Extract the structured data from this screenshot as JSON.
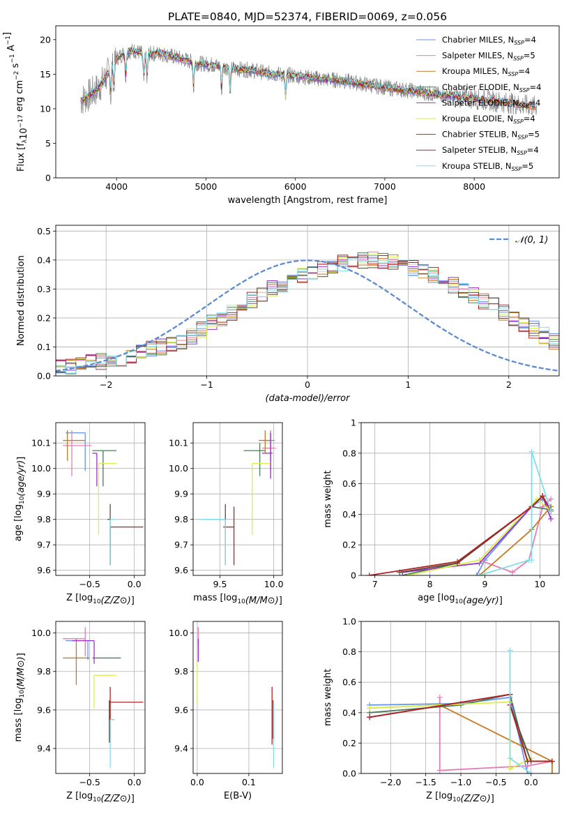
{
  "title": "PLATE=0840, MJD=52374, FIBERID=0069, z=0.056",
  "colors": {
    "Chabrier MILES": "#6495ed",
    "Salpeter MILES": "#e67ab4",
    "Kroupa MILES": "#c47a1d",
    "Chabrier ELODIE": "#4a7c59",
    "Salpeter ELODIE": "#9932cc",
    "Kroupa ELODIE": "#d9ef4a",
    "Chabrier STELIB": "#5a4a3a",
    "Salpeter STELIB": "#b22222",
    "Kroupa STELIB": "#80deea",
    "data": "#808080",
    "grid": "#b0b0b0",
    "normal_curve": "#5b8ad6"
  },
  "chart_data": [
    {
      "id": "spectrum",
      "type": "line",
      "xlabel": "wavelength [Angstrom, rest frame]",
      "ylabel": "Flux [f_λ10^-17 erg cm^-2 s^-1 A^-1]",
      "xlim": [
        3320,
        8950
      ],
      "ylim": [
        0,
        22
      ],
      "xticks": [
        4000,
        5000,
        6000,
        7000,
        8000
      ],
      "yticks": [
        0,
        5,
        10,
        15,
        20
      ],
      "grid": false,
      "legend_position": "upper right",
      "continuum": {
        "x": [
          3600,
          3700,
          3800,
          3900,
          4000,
          4100,
          4200,
          4300,
          4500,
          4700,
          4900,
          5100,
          5300,
          5500,
          5700,
          5900,
          6100,
          6300,
          6500,
          6700,
          6900,
          7100,
          7300,
          7500,
          7700,
          7900,
          8100,
          8300,
          8500,
          8700
        ],
        "y": [
          11.2,
          12.0,
          13.0,
          15.0,
          17.3,
          18.2,
          18.4,
          17.9,
          18.0,
          17.3,
          16.6,
          16.3,
          15.8,
          15.6,
          15.1,
          14.9,
          14.6,
          14.3,
          14.1,
          13.7,
          13.3,
          12.9,
          12.6,
          12.2,
          11.9,
          11.6,
          11.3,
          11.0,
          10.6,
          10.3
        ]
      },
      "absorption_lines_x": [
        3934,
        3969,
        4102,
        4304,
        4340,
        4861,
        5175,
        5270,
        5890
      ],
      "series": [
        {
          "name": "Chabrier MILES, N_SSP=4",
          "model": "Chabrier MILES"
        },
        {
          "name": "Salpeter MILES, N_SSP=5",
          "model": "Salpeter MILES"
        },
        {
          "name": "Kroupa MILES, N_SSP=4",
          "model": "Kroupa MILES"
        },
        {
          "name": "Chabrier ELODIE, N_SSP=4",
          "model": "Chabrier ELODIE"
        },
        {
          "name": "Salpeter ELODIE, N_SSP=4",
          "model": "Salpeter ELODIE"
        },
        {
          "name": "Kroupa ELODIE, N_SSP=4",
          "model": "Kroupa ELODIE"
        },
        {
          "name": "Chabrier STELIB, N_SSP=5",
          "model": "Chabrier STELIB"
        },
        {
          "name": "Salpeter STELIB, N_SSP=4",
          "model": "Salpeter STELIB"
        },
        {
          "name": "Kroupa STELIB, N_SSP=5",
          "model": "Kroupa STELIB"
        }
      ]
    },
    {
      "id": "residuals",
      "type": "histogram",
      "xlabel": "(data-model)/error",
      "ylabel": "Normed distribution",
      "xlim": [
        -2.5,
        2.5
      ],
      "ylim": [
        0,
        0.52
      ],
      "xticks": [
        -2,
        -1,
        0,
        1,
        2
      ],
      "yticks": [
        0.0,
        0.1,
        0.2,
        0.3,
        0.4,
        0.5
      ],
      "grid": true,
      "legend": "𝒩(0, 1)",
      "legend_position": "upper right",
      "bin_width": 0.1,
      "bins_from": -2.5,
      "base_values": [
        0.03,
        0.03,
        0.04,
        0.05,
        0.05,
        0.06,
        0.06,
        0.07,
        0.08,
        0.09,
        0.1,
        0.11,
        0.12,
        0.14,
        0.16,
        0.18,
        0.2,
        0.22,
        0.24,
        0.26,
        0.28,
        0.3,
        0.31,
        0.33,
        0.35,
        0.36,
        0.37,
        0.38,
        0.39,
        0.4,
        0.4,
        0.4,
        0.4,
        0.39,
        0.38,
        0.37,
        0.36,
        0.35,
        0.33,
        0.31,
        0.3,
        0.28,
        0.26,
        0.24,
        0.22,
        0.2,
        0.18,
        0.16,
        0.14,
        0.12,
        0.11,
        0.1,
        0.09,
        0.08,
        0.07,
        0.06,
        0.06,
        0.05,
        0.05,
        0.04,
        0.03,
        0.03
      ]
    },
    {
      "id": "age-vs-Z",
      "type": "errorbar",
      "xlabel": "Z [log10(Z/Z⊙)]",
      "ylabel": "age [log10(age/yr)]",
      "xlim": [
        -0.88,
        0.12
      ],
      "ylim": [
        9.58,
        10.18
      ],
      "xticks": [
        -0.5,
        0.0
      ],
      "yticks": [
        9.6,
        9.7,
        9.8,
        9.9,
        10.0,
        10.1
      ],
      "grid": true,
      "points": [
        {
          "model": "Chabrier MILES",
          "x": -0.55,
          "xerr": [
            0.22,
            0.0
          ],
          "y": 10.14,
          "yerr": [
            0.15,
            0.0
          ]
        },
        {
          "model": "Salpeter MILES",
          "x": -0.7,
          "xerr": [
            0.1,
            0.22
          ],
          "y": 10.09,
          "yerr": [
            0.12,
            0.06
          ]
        },
        {
          "model": "Kroupa MILES",
          "x": -0.75,
          "xerr": [
            0.05,
            0.2
          ],
          "y": 10.11,
          "yerr": [
            0.08,
            0.04
          ]
        },
        {
          "model": "Chabrier ELODIE",
          "x": -0.35,
          "xerr": [
            0.12,
            0.15
          ],
          "y": 10.07,
          "yerr": [
            0.14,
            0.0
          ]
        },
        {
          "model": "Salpeter ELODIE",
          "x": -0.42,
          "xerr": [
            0.05,
            0.0
          ],
          "y": 10.06,
          "yerr": [
            0.13,
            0.0
          ]
        },
        {
          "model": "Kroupa ELODIE",
          "x": -0.4,
          "xerr": [
            0.0,
            0.2
          ],
          "y": 10.02,
          "yerr": [
            0.28,
            0.0
          ]
        },
        {
          "model": "Chabrier STELIB",
          "x": -0.27,
          "xerr": [
            0.03,
            0.0
          ],
          "y": 9.8,
          "yerr": [
            0.18,
            0.06
          ]
        },
        {
          "model": "Salpeter STELIB",
          "x": -0.27,
          "xerr": [
            0.0,
            0.37
          ],
          "y": 9.77,
          "yerr": [
            0.15,
            0.0
          ]
        },
        {
          "model": "Kroupa STELIB",
          "x": -0.27,
          "xerr": [
            0.0,
            0.05
          ],
          "y": 9.8,
          "yerr": [
            0.18,
            0.0
          ]
        }
      ]
    },
    {
      "id": "age-vs-mass",
      "type": "errorbar",
      "xlabel": "mass [log10(M/M⊙)]",
      "ylabel": "",
      "xlim": [
        9.25,
        10.08
      ],
      "ylim": [
        9.58,
        10.18
      ],
      "xticks": [
        9.5,
        10.0
      ],
      "yticks": [
        9.6,
        9.7,
        9.8,
        9.9,
        10.0,
        10.1
      ],
      "grid": true,
      "points": [
        {
          "model": "Chabrier MILES",
          "x": 9.97,
          "xerr": [
            0.06,
            0.04
          ],
          "y": 10.11,
          "yerr": [
            0.08,
            0.04
          ]
        },
        {
          "model": "Salpeter MILES",
          "x": 9.97,
          "xerr": [
            0.08,
            0.05
          ],
          "y": 10.08,
          "yerr": [
            0.09,
            0.07
          ]
        },
        {
          "model": "Kroupa MILES",
          "x": 9.92,
          "xerr": [
            0.06,
            0.05
          ],
          "y": 10.11,
          "yerr": [
            0.05,
            0.04
          ]
        },
        {
          "model": "Chabrier ELODIE",
          "x": 9.87,
          "xerr": [
            0.15,
            0.05
          ],
          "y": 10.07,
          "yerr": [
            0.1,
            0.03
          ]
        },
        {
          "model": "Salpeter ELODIE",
          "x": 9.97,
          "xerr": [
            0.08,
            0.02
          ],
          "y": 10.06,
          "yerr": [
            0.1,
            0.08
          ]
        },
        {
          "model": "Kroupa ELODIE",
          "x": 9.8,
          "xerr": [
            0.0,
            0.16
          ],
          "y": 10.02,
          "yerr": [
            0.28,
            0.0
          ]
        },
        {
          "model": "Chabrier STELIB",
          "x": 9.55,
          "xerr": [
            0.2,
            0.0
          ],
          "y": 9.8,
          "yerr": [
            0.18,
            0.06
          ]
        },
        {
          "model": "Salpeter STELIB",
          "x": 9.63,
          "xerr": [
            0.1,
            0.0
          ],
          "y": 9.77,
          "yerr": [
            0.15,
            0.08
          ]
        },
        {
          "model": "Kroupa STELIB",
          "x": 9.55,
          "xerr": [
            0.25,
            0.0
          ],
          "y": 9.8,
          "yerr": [
            0.18,
            0.0
          ]
        }
      ]
    },
    {
      "id": "weight-vs-age",
      "type": "line",
      "xlabel": "age [log10(age/yr)]",
      "ylabel": "mass weight",
      "xlim": [
        6.75,
        10.35
      ],
      "ylim": [
        0,
        1
      ],
      "xticks": [
        7,
        8,
        9,
        10
      ],
      "yticks": [
        0.0,
        0.2,
        0.4,
        0.6,
        0.8,
        1.0
      ],
      "grid": true,
      "series": [
        {
          "model": "Chabrier MILES",
          "x": [
            8.85,
            9.0,
            9.85,
            10.05,
            10.2
          ],
          "y": [
            0.0,
            0.1,
            0.45,
            0.5,
            0.45
          ]
        },
        {
          "model": "Salpeter MILES",
          "x": [
            8.9,
            9.5,
            9.8,
            10.05,
            10.2
          ],
          "y": [
            0.1,
            0.02,
            0.1,
            0.45,
            0.5
          ]
        },
        {
          "model": "Kroupa MILES",
          "x": [
            8.9,
            9.85,
            10.2
          ],
          "y": [
            0.0,
            0.3,
            0.45
          ]
        },
        {
          "model": "Chabrier ELODIE",
          "x": [
            7.5,
            8.5,
            9.85,
            10.2
          ],
          "y": [
            0.0,
            0.08,
            0.45,
            0.43
          ]
        },
        {
          "model": "Salpeter ELODIE",
          "x": [
            7.5,
            8.9,
            9.85,
            10.05,
            10.2
          ],
          "y": [
            0.02,
            0.08,
            0.45,
            0.52,
            0.37
          ]
        },
        {
          "model": "Kroupa ELODIE",
          "x": [
            7.6,
            8.9,
            9.95,
            10.2
          ],
          "y": [
            0.0,
            0.1,
            0.5,
            0.42
          ]
        },
        {
          "model": "Chabrier STELIB",
          "x": [
            7.45,
            8.5,
            9.85,
            10.05,
            10.2
          ],
          "y": [
            0.02,
            0.08,
            0.45,
            0.52,
            0.42
          ]
        },
        {
          "model": "Salpeter STELIB",
          "x": [
            6.9,
            8.5,
            9.85,
            10.05,
            10.2
          ],
          "y": [
            0.0,
            0.09,
            0.45,
            0.52,
            0.42
          ]
        },
        {
          "model": "Kroupa STELIB",
          "x": [
            8.9,
            9.8,
            9.85,
            9.85,
            10.2
          ],
          "y": [
            0.0,
            0.1,
            0.1,
            0.81,
            0.42
          ]
        }
      ]
    },
    {
      "id": "mass-vs-Z",
      "type": "errorbar",
      "xlabel": "Z [log10(Z/Z⊙)]",
      "ylabel": "mass [log10(M/M⊙)]",
      "xlim": [
        -0.88,
        0.12
      ],
      "ylim": [
        9.27,
        10.06
      ],
      "xticks": [
        -0.5,
        0.0
      ],
      "yticks": [
        9.4,
        9.6,
        9.8,
        10.0
      ],
      "grid": true,
      "points": [
        {
          "model": "Chabrier MILES",
          "x": -0.52,
          "xerr": [
            0.25,
            0.0
          ],
          "y": 9.96,
          "yerr": [
            0.1,
            0.0
          ]
        },
        {
          "model": "Salpeter MILES",
          "x": -0.55,
          "xerr": [
            0.25,
            0.0
          ],
          "y": 9.97,
          "yerr": [
            0.09,
            0.06
          ]
        },
        {
          "model": "Kroupa MILES",
          "x": -0.65,
          "xerr": [
            0.15,
            0.15
          ],
          "y": 9.87,
          "yerr": [
            0.14,
            0.1
          ]
        },
        {
          "model": "Chabrier ELODIE",
          "x": -0.35,
          "xerr": [
            0.12,
            0.2
          ],
          "y": 9.87,
          "yerr": [
            0.0,
            0.0
          ]
        },
        {
          "model": "Salpeter ELODIE",
          "x": -0.45,
          "xerr": [
            0.25,
            0.0
          ],
          "y": 9.96,
          "yerr": [
            0.12,
            0.0
          ]
        },
        {
          "model": "Kroupa ELODIE",
          "x": -0.45,
          "xerr": [
            0.0,
            0.25
          ],
          "y": 9.78,
          "yerr": [
            0.17,
            0.0
          ]
        },
        {
          "model": "Chabrier STELIB",
          "x": -0.28,
          "xerr": [
            0.0,
            0.05
          ],
          "y": 9.55,
          "yerr": [
            0.12,
            0.1
          ]
        },
        {
          "model": "Salpeter STELIB",
          "x": -0.27,
          "xerr": [
            0.0,
            0.37
          ],
          "y": 9.64,
          "yerr": [
            0.2,
            0.08
          ]
        },
        {
          "model": "Kroupa STELIB",
          "x": -0.27,
          "xerr": [
            0.0,
            0.05
          ],
          "y": 9.55,
          "yerr": [
            0.25,
            0.0
          ]
        }
      ]
    },
    {
      "id": "mass-vs-ebv",
      "type": "errorbar",
      "xlabel": "E(B-V)",
      "ylabel": "",
      "xlim": [
        -0.008,
        0.165
      ],
      "ylim": [
        9.27,
        10.06
      ],
      "xticks": [
        0.0,
        0.1
      ],
      "yticks": [
        9.4,
        9.6,
        9.8,
        10.0
      ],
      "grid": true,
      "points": [
        {
          "model": "Salpeter MILES",
          "x": 0.002,
          "xerr": [
            0.0,
            0.0
          ],
          "y": 9.97,
          "yerr": [
            0.03,
            0.06
          ]
        },
        {
          "model": "Salpeter ELODIE",
          "x": 0.002,
          "xerr": [
            0.0,
            0.0
          ],
          "y": 9.95,
          "yerr": [
            0.1,
            0.02
          ]
        },
        {
          "model": "Kroupa ELODIE",
          "x": 0.0,
          "xerr": [
            0.0,
            0.0
          ],
          "y": 9.75,
          "yerr": [
            0.12,
            0.1
          ]
        },
        {
          "model": "Salpeter STELIB",
          "x": 0.145,
          "xerr": [
            0.0,
            0.0
          ],
          "y": 9.57,
          "yerr": [
            0.15,
            0.15
          ]
        },
        {
          "model": "Chabrier STELIB",
          "x": 0.147,
          "xerr": [
            0.0,
            0.0
          ],
          "y": 9.55,
          "yerr": [
            0.1,
            0.1
          ]
        },
        {
          "model": "Kroupa STELIB",
          "x": 0.148,
          "xerr": [
            0.0,
            0.0
          ],
          "y": 9.42,
          "yerr": [
            0.12,
            0.22
          ]
        }
      ]
    },
    {
      "id": "weight-vs-Z",
      "type": "line",
      "xlabel": "Z [log10(Z/Z⊙)]",
      "ylabel": "mass weight",
      "xlim": [
        -2.42,
        0.4
      ],
      "ylim": [
        0,
        1
      ],
      "xticks": [
        -2.0,
        -1.5,
        -1.0,
        -0.5,
        0.0
      ],
      "yticks": [
        0.0,
        0.2,
        0.4,
        0.6,
        0.8,
        1.0
      ],
      "grid": true,
      "series": [
        {
          "model": "Chabrier MILES",
          "x": [
            -2.3,
            -1.0,
            -0.3,
            -0.05,
            0.0
          ],
          "y": [
            0.45,
            0.46,
            0.5,
            0.0,
            0.0
          ]
        },
        {
          "model": "Salpeter MILES",
          "x": [
            -1.3,
            -1.3,
            -0.05,
            0.3
          ],
          "y": [
            0.5,
            0.02,
            0.05,
            0.08
          ]
        },
        {
          "model": "Kroupa MILES",
          "x": [
            -2.3,
            -1.3,
            0.3,
            0.3
          ],
          "y": [
            0.43,
            0.45,
            0.08,
            0.0
          ]
        },
        {
          "model": "Chabrier ELODIE",
          "x": [
            -2.3,
            -1.0,
            -0.3,
            -0.05
          ],
          "y": [
            0.4,
            0.45,
            0.52,
            0.08
          ]
        },
        {
          "model": "Salpeter ELODIE",
          "x": [
            -2.3,
            -0.3,
            -0.3
          ],
          "y": [
            0.37,
            0.52,
            0.45
          ]
        },
        {
          "model": "Kroupa ELODIE",
          "x": [
            -2.3,
            -0.3,
            -0.3,
            0.0
          ],
          "y": [
            0.43,
            0.47,
            0.03,
            0.1
          ]
        },
        {
          "model": "Chabrier STELIB",
          "x": [
            -2.3,
            -0.3,
            -0.3,
            0.0,
            0.3
          ],
          "y": [
            0.37,
            0.52,
            0.45,
            0.08,
            0.08
          ]
        },
        {
          "model": "Salpeter STELIB",
          "x": [
            -2.3,
            -0.3,
            -0.3,
            -0.05,
            0.3
          ],
          "y": [
            0.37,
            0.52,
            0.45,
            0.08,
            0.08
          ]
        },
        {
          "model": "Kroupa STELIB",
          "x": [
            -0.3,
            -0.3,
            0.0
          ],
          "y": [
            0.81,
            0.1,
            0.0
          ]
        }
      ]
    }
  ]
}
